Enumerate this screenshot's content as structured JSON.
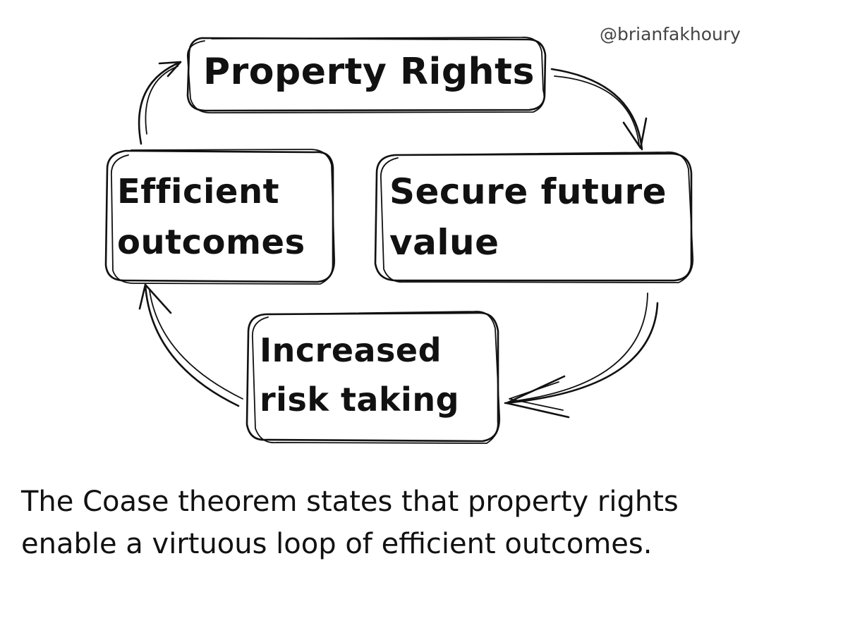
{
  "author_handle": "@brianfakhoury",
  "nodes": {
    "property_rights": [
      "Property Rights"
    ],
    "efficient_outcomes": [
      "Efficient",
      "outcomes"
    ],
    "secure_future_value": [
      "Secure future",
      "value"
    ],
    "increased_risk_taking": [
      "Increased",
      "risk taking"
    ]
  },
  "caption": [
    "The Coase theorem states that property rights",
    "enable a virtuous loop of efficient outcomes."
  ]
}
